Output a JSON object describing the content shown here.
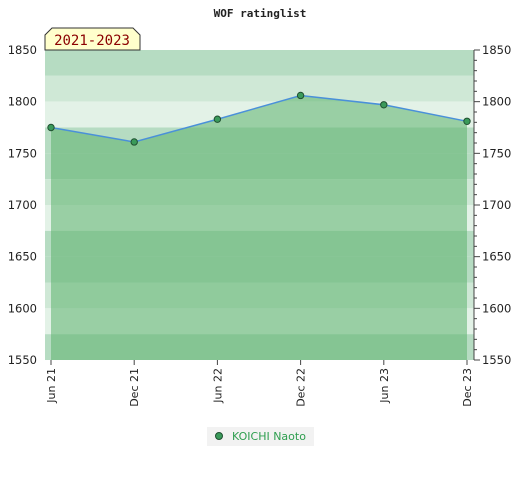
{
  "chart_data": {
    "type": "area",
    "title": "WOF ratinglist",
    "period_label": "2021-2023",
    "categories": [
      "Jun 21",
      "Dec 21",
      "Jun 22",
      "Dec 22",
      "Jun 23",
      "Dec 23"
    ],
    "series": [
      {
        "name": "KOICHI Naoto",
        "values": [
          1775,
          1761,
          1783,
          1806,
          1797,
          1781
        ]
      }
    ],
    "ylim": [
      1550,
      1850
    ],
    "yticks": [
      1550,
      1600,
      1650,
      1700,
      1750,
      1800,
      1850
    ],
    "grid": true,
    "legend": "bottom-center",
    "colors": {
      "line": "#4a90d9",
      "marker": "#3a9a5a",
      "fill": "#5db26e",
      "band_light": "#e3f2e7",
      "band_mid": "#cfe8d6",
      "band_dark": "#b6dcc2",
      "period_box": "#ffffcc",
      "legend_text": "#2e9e4f"
    }
  }
}
